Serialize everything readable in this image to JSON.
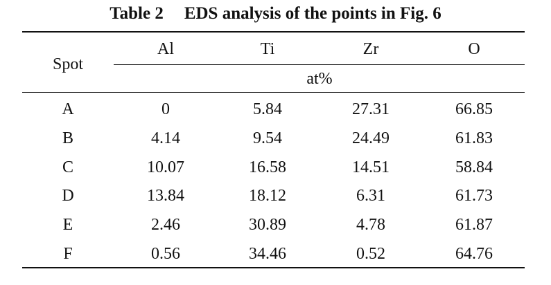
{
  "caption": {
    "number": "Table 2",
    "title": "EDS analysis of the points in Fig. 6"
  },
  "table": {
    "row_header": "Spot",
    "columns": [
      "Al",
      "Ti",
      "Zr",
      "O"
    ],
    "unit": "at%",
    "rows": [
      {
        "spot": "A",
        "values": [
          "0",
          "5.84",
          "27.31",
          "66.85"
        ]
      },
      {
        "spot": "B",
        "values": [
          "4.14",
          "9.54",
          "24.49",
          "61.83"
        ]
      },
      {
        "spot": "C",
        "values": [
          "10.07",
          "16.58",
          "14.51",
          "58.84"
        ]
      },
      {
        "spot": "D",
        "values": [
          "13.84",
          "18.12",
          "6.31",
          "61.73"
        ]
      },
      {
        "spot": "E",
        "values": [
          "2.46",
          "30.89",
          "4.78",
          "61.87"
        ]
      },
      {
        "spot": "F",
        "values": [
          "0.56",
          "34.46",
          "0.52",
          "64.76"
        ]
      }
    ]
  }
}
